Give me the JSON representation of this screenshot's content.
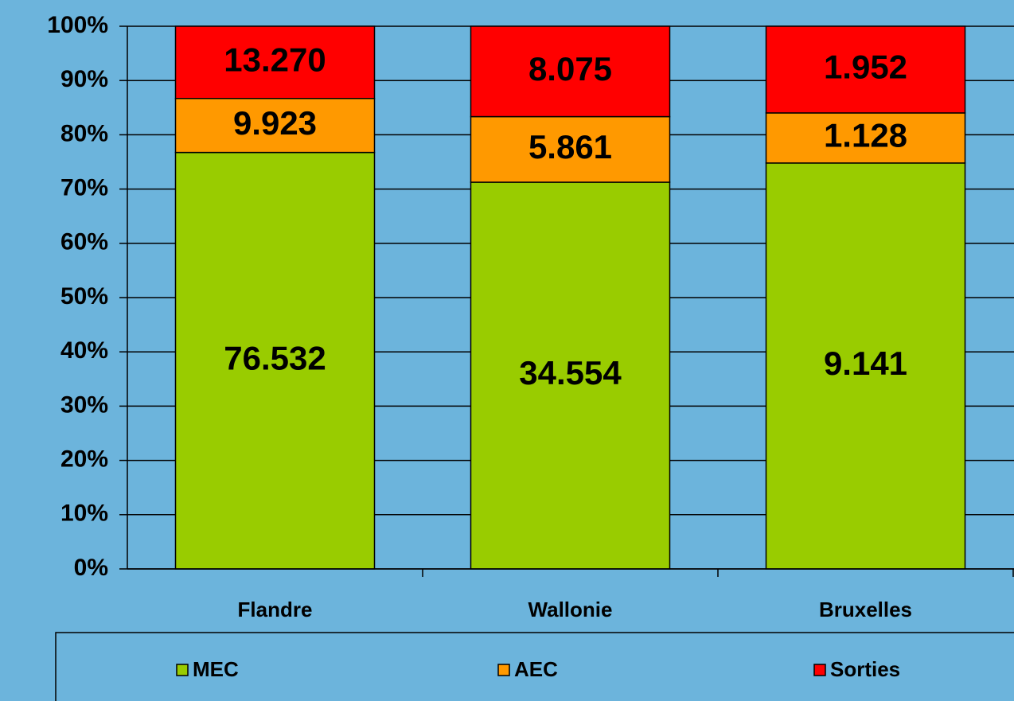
{
  "chart_data": {
    "type": "bar",
    "stacking": "percent",
    "categories": [
      "Flandre",
      "Wallonie",
      "Bruxelles"
    ],
    "series": [
      {
        "name": "MEC",
        "color": "#99cc00",
        "values": [
          76532,
          34554,
          9141
        ],
        "value_labels": [
          "76.532",
          "34.554",
          "9.141"
        ]
      },
      {
        "name": "AEC",
        "color": "#ff9900",
        "values": [
          9923,
          5861,
          1128
        ],
        "value_labels": [
          "9.923",
          "5.861",
          "1.128"
        ]
      },
      {
        "name": "Sorties",
        "color": "#ff0000",
        "values": [
          13270,
          8075,
          1952
        ],
        "value_labels": [
          "13.270",
          "8.075",
          "1.952"
        ]
      }
    ],
    "ylim": [
      0,
      100
    ],
    "yticks": [
      {
        "value": 0,
        "label": "0%"
      },
      {
        "value": 10,
        "label": "10%"
      },
      {
        "value": 20,
        "label": "20%"
      },
      {
        "value": 30,
        "label": "30%"
      },
      {
        "value": 40,
        "label": "40%"
      },
      {
        "value": 50,
        "label": "50%"
      },
      {
        "value": 60,
        "label": "60%"
      },
      {
        "value": 70,
        "label": "70%"
      },
      {
        "value": 80,
        "label": "80%"
      },
      {
        "value": 90,
        "label": "90%"
      },
      {
        "value": 100,
        "label": "100%"
      }
    ],
    "grid": true,
    "legend": "bottom"
  }
}
